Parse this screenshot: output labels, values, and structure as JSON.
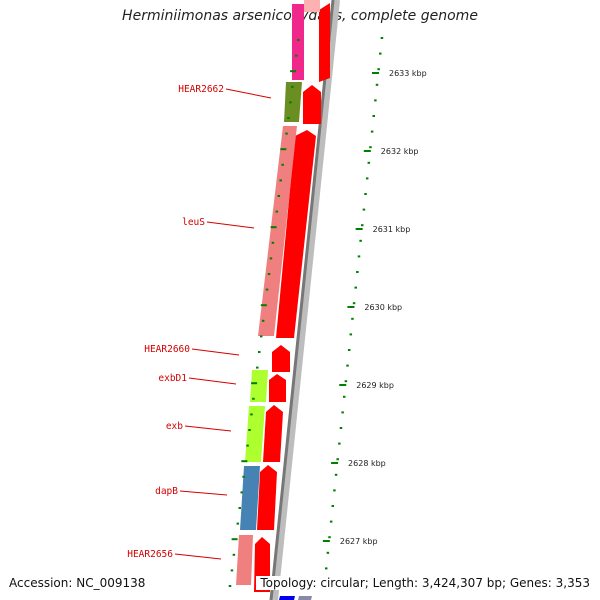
{
  "title": "Herminiimonas arsenicoxydans, complete genome",
  "footer": {
    "accession": "Accession: NC_009138",
    "summary": "Topology: circular; Length: 3,424,307 bp; Genes: 3,353"
  },
  "kbp_ticks": [
    {
      "kbp": 2633,
      "label": "2633 kbp"
    },
    {
      "kbp": 2632,
      "label": "2632 kbp"
    },
    {
      "kbp": 2631,
      "label": "2631 kbp"
    },
    {
      "kbp": 2630,
      "label": "2630 kbp"
    },
    {
      "kbp": 2629,
      "label": "2629 kbp"
    },
    {
      "kbp": 2628,
      "label": "2628 kbp"
    },
    {
      "kbp": 2627,
      "label": "2627 kbp"
    }
  ],
  "gene_labels": [
    {
      "label": "HEAR2662"
    },
    {
      "label": "leuS"
    },
    {
      "label": "HEAR2660"
    },
    {
      "label": "exbD1"
    },
    {
      "label": "exb"
    },
    {
      "label": "dapB"
    },
    {
      "label": "HEAR2656"
    }
  ],
  "gene_colors": {
    "magenta": "#f0288c",
    "olive": "#6b8e23",
    "salmon": "#f08080",
    "lime": "#adff2f",
    "steel": "#4682b4",
    "red": "#ff0000",
    "blue": "#0000ee"
  }
}
